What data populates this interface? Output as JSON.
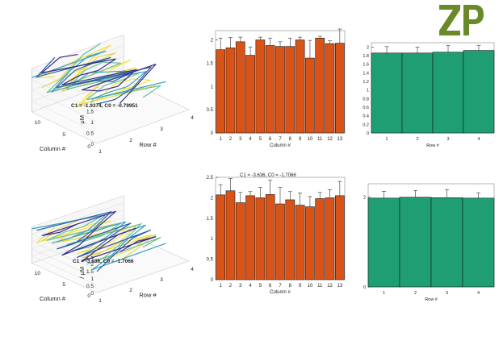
{
  "logo": {
    "text": "ZP",
    "color": "#6a8a2a"
  },
  "colors": {
    "bar_orange": "#d95319",
    "bar_green": "#1f9e74",
    "edge": "#1a1a1a"
  },
  "chart_data": [
    {
      "id": "top-3d",
      "type": "line3d",
      "zlabel": "μM",
      "xlabel": "Row #",
      "ylabel": "Column #",
      "zticks": [
        "0",
        "0.5",
        "1",
        "1.5",
        "2"
      ],
      "row_ticks": [
        "1",
        "2",
        "3",
        "4"
      ],
      "col_ticks": [
        "0",
        "5",
        "10"
      ],
      "annotation": "C1 = -1.9374, C0 = -0.79951"
    },
    {
      "id": "top-bar-col",
      "type": "bar",
      "xlabel": "Column #",
      "categories": [
        "1",
        "2",
        "3",
        "4",
        "5",
        "6",
        "7",
        "8",
        "9",
        "10",
        "11",
        "12",
        "13"
      ],
      "values": [
        1.79,
        1.83,
        1.96,
        1.67,
        2.0,
        1.88,
        1.86,
        1.86,
        2.0,
        1.61,
        2.04,
        1.92,
        1.93
      ],
      "errors": [
        0.25,
        0.22,
        0.1,
        0.18,
        0.06,
        0.16,
        0.1,
        0.18,
        0.06,
        0.38,
        0.04,
        0.06,
        0.4
      ],
      "ylim": [
        0,
        2.2
      ],
      "yticks": [
        0,
        0.5,
        1,
        1.5,
        2
      ]
    },
    {
      "id": "top-bar-row",
      "type": "bar",
      "xlabel": "Row #",
      "categories": [
        "1",
        "2",
        "3",
        "4"
      ],
      "values": [
        1.86,
        1.86,
        1.88,
        1.92
      ],
      "errors": [
        0.15,
        0.14,
        0.16,
        0.12
      ],
      "ylim": [
        0,
        2.1
      ],
      "yticks": [
        0,
        0.2,
        0.4,
        0.6,
        0.8,
        1,
        1.2,
        1.4,
        1.6,
        1.8,
        2
      ]
    },
    {
      "id": "bottom-3d",
      "type": "line3d",
      "zlabel": "/ μM",
      "xlabel": "Row #",
      "ylabel": "Column #",
      "zticks": [
        "0",
        "0.5",
        "1",
        "1.5",
        "2",
        "2.5"
      ],
      "row_ticks": [
        "1",
        "2",
        "3",
        "4"
      ],
      "col_ticks": [
        "0",
        "5",
        "10"
      ],
      "annotation": "C1 = -3.636, C0 = -1.7066"
    },
    {
      "id": "bottom-bar-col",
      "type": "bar",
      "xlabel": "Column #",
      "categories": [
        "1",
        "2",
        "3",
        "4",
        "5",
        "6",
        "7",
        "8",
        "9",
        "10",
        "11",
        "12",
        "13"
      ],
      "values": [
        2.07,
        2.17,
        1.88,
        2.05,
        2.0,
        2.08,
        1.85,
        1.95,
        1.82,
        1.78,
        1.98,
        2.0,
        2.05
      ],
      "errors": [
        0.25,
        0.3,
        0.25,
        0.1,
        0.25,
        0.35,
        0.4,
        0.2,
        0.3,
        0.25,
        0.15,
        0.2,
        0.35
      ],
      "ylim": [
        0,
        2.5
      ],
      "yticks": [
        0,
        0.5,
        1,
        1.5,
        2,
        2.5
      ],
      "title_fragment": "C1 = -3.636, C0 = -1.7066"
    },
    {
      "id": "bottom-bar-row",
      "type": "bar",
      "xlabel": "Row #",
      "categories": [
        "1",
        "2",
        "3",
        "4"
      ],
      "values": [
        1.98,
        2.0,
        1.99,
        1.98
      ],
      "errors": [
        0.15,
        0.15,
        0.18,
        0.12
      ],
      "ylim": [
        0,
        2.3
      ],
      "yticks": [
        0,
        2
      ]
    }
  ]
}
